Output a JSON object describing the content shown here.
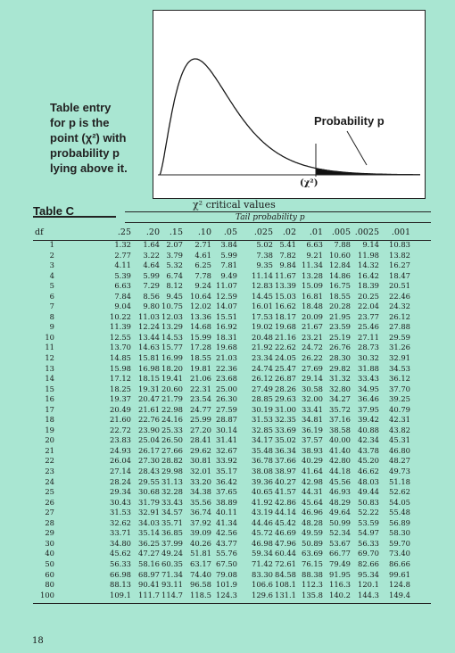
{
  "explanation": {
    "lines": [
      "Table entry",
      "for p is the",
      "point (χ²) with",
      "probability p",
      "lying above it."
    ]
  },
  "figure": {
    "probability_label": "Probability p",
    "x_label": "(χ²)",
    "colors": {
      "curve": "#1a1a1a",
      "shade": "#111111",
      "background": "#ffffff"
    }
  },
  "table": {
    "title": "Table C",
    "heading": "χ² critical values",
    "tail_label": "Tail probability p",
    "df_label": "df",
    "columns": [
      ".25",
      ".20",
      ".15",
      ".10",
      ".05",
      ".025",
      ".02",
      ".01",
      ".005",
      ".0025",
      ".001"
    ],
    "rows": [
      {
        "df": "1",
        "values": [
          "1.32",
          "1.64",
          "2.07",
          "2.71",
          "3.84",
          "5.02",
          "5.41",
          "6.63",
          "7.88",
          "9.14",
          "10.83"
        ]
      },
      {
        "df": "2",
        "values": [
          "2.77",
          "3.22",
          "3.79",
          "4.61",
          "5.99",
          "7.38",
          "7.82",
          "9.21",
          "10.60",
          "11.98",
          "13.82"
        ]
      },
      {
        "df": "3",
        "values": [
          "4.11",
          "4.64",
          "5.32",
          "6.25",
          "7.81",
          "9.35",
          "9.84",
          "11.34",
          "12.84",
          "14.32",
          "16.27"
        ]
      },
      {
        "df": "4",
        "values": [
          "5.39",
          "5.99",
          "6.74",
          "7.78",
          "9.49",
          "11.14",
          "11.67",
          "13.28",
          "14.86",
          "16.42",
          "18.47"
        ]
      },
      {
        "df": "5",
        "values": [
          "6.63",
          "7.29",
          "8.12",
          "9.24",
          "11.07",
          "12.83",
          "13.39",
          "15.09",
          "16.75",
          "18.39",
          "20.51"
        ]
      },
      {
        "df": "6",
        "values": [
          "7.84",
          "8.56",
          "9.45",
          "10.64",
          "12.59",
          "14.45",
          "15.03",
          "16.81",
          "18.55",
          "20.25",
          "22.46"
        ]
      },
      {
        "df": "7",
        "values": [
          "9.04",
          "9.80",
          "10.75",
          "12.02",
          "14.07",
          "16.01",
          "16.62",
          "18.48",
          "20.28",
          "22.04",
          "24.32"
        ]
      },
      {
        "df": "8",
        "values": [
          "10.22",
          "11.03",
          "12.03",
          "13.36",
          "15.51",
          "17.53",
          "18.17",
          "20.09",
          "21.95",
          "23.77",
          "26.12"
        ]
      },
      {
        "df": "9",
        "values": [
          "11.39",
          "12.24",
          "13.29",
          "14.68",
          "16.92",
          "19.02",
          "19.68",
          "21.67",
          "23.59",
          "25.46",
          "27.88"
        ]
      },
      {
        "df": "10",
        "values": [
          "12.55",
          "13.44",
          "14.53",
          "15.99",
          "18.31",
          "20.48",
          "21.16",
          "23.21",
          "25.19",
          "27.11",
          "29.59"
        ]
      },
      {
        "df": "11",
        "values": [
          "13.70",
          "14.63",
          "15.77",
          "17.28",
          "19.68",
          "21.92",
          "22.62",
          "24.72",
          "26.76",
          "28.73",
          "31.26"
        ]
      },
      {
        "df": "12",
        "values": [
          "14.85",
          "15.81",
          "16.99",
          "18.55",
          "21.03",
          "23.34",
          "24.05",
          "26.22",
          "28.30",
          "30.32",
          "32.91"
        ]
      },
      {
        "df": "13",
        "values": [
          "15.98",
          "16.98",
          "18.20",
          "19.81",
          "22.36",
          "24.74",
          "25.47",
          "27.69",
          "29.82",
          "31.88",
          "34.53"
        ]
      },
      {
        "df": "14",
        "values": [
          "17.12",
          "18.15",
          "19.41",
          "21.06",
          "23.68",
          "26.12",
          "26.87",
          "29.14",
          "31.32",
          "33.43",
          "36.12"
        ]
      },
      {
        "df": "15",
        "values": [
          "18.25",
          "19.31",
          "20.60",
          "22.31",
          "25.00",
          "27.49",
          "28.26",
          "30.58",
          "32.80",
          "34.95",
          "37.70"
        ]
      },
      {
        "df": "16",
        "values": [
          "19.37",
          "20.47",
          "21.79",
          "23.54",
          "26.30",
          "28.85",
          "29.63",
          "32.00",
          "34.27",
          "36.46",
          "39.25"
        ]
      },
      {
        "df": "17",
        "values": [
          "20.49",
          "21.61",
          "22.98",
          "24.77",
          "27.59",
          "30.19",
          "31.00",
          "33.41",
          "35.72",
          "37.95",
          "40.79"
        ]
      },
      {
        "df": "18",
        "values": [
          "21.60",
          "22.76",
          "24.16",
          "25.99",
          "28.87",
          "31.53",
          "32.35",
          "34.81",
          "37.16",
          "39.42",
          "42.31"
        ]
      },
      {
        "df": "19",
        "values": [
          "22.72",
          "23.90",
          "25.33",
          "27.20",
          "30.14",
          "32.85",
          "33.69",
          "36.19",
          "38.58",
          "40.88",
          "43.82"
        ]
      },
      {
        "df": "20",
        "values": [
          "23.83",
          "25.04",
          "26.50",
          "28.41",
          "31.41",
          "34.17",
          "35.02",
          "37.57",
          "40.00",
          "42.34",
          "45.31"
        ]
      },
      {
        "df": "21",
        "values": [
          "24.93",
          "26.17",
          "27.66",
          "29.62",
          "32.67",
          "35.48",
          "36.34",
          "38.93",
          "41.40",
          "43.78",
          "46.80"
        ]
      },
      {
        "df": "22",
        "values": [
          "26.04",
          "27.30",
          "28.82",
          "30.81",
          "33.92",
          "36.78",
          "37.66",
          "40.29",
          "42.80",
          "45.20",
          "48.27"
        ]
      },
      {
        "df": "23",
        "values": [
          "27.14",
          "28.43",
          "29.98",
          "32.01",
          "35.17",
          "38.08",
          "38.97",
          "41.64",
          "44.18",
          "46.62",
          "49.73"
        ]
      },
      {
        "df": "24",
        "values": [
          "28.24",
          "29.55",
          "31.13",
          "33.20",
          "36.42",
          "39.36",
          "40.27",
          "42.98",
          "45.56",
          "48.03",
          "51.18"
        ]
      },
      {
        "df": "25",
        "values": [
          "29.34",
          "30.68",
          "32.28",
          "34.38",
          "37.65",
          "40.65",
          "41.57",
          "44.31",
          "46.93",
          "49.44",
          "52.62"
        ]
      },
      {
        "df": "26",
        "values": [
          "30.43",
          "31.79",
          "33.43",
          "35.56",
          "38.89",
          "41.92",
          "42.86",
          "45.64",
          "48.29",
          "50.83",
          "54.05"
        ]
      },
      {
        "df": "27",
        "values": [
          "31.53",
          "32.91",
          "34.57",
          "36.74",
          "40.11",
          "43.19",
          "44.14",
          "46.96",
          "49.64",
          "52.22",
          "55.48"
        ]
      },
      {
        "df": "28",
        "values": [
          "32.62",
          "34.03",
          "35.71",
          "37.92",
          "41.34",
          "44.46",
          "45.42",
          "48.28",
          "50.99",
          "53.59",
          "56.89"
        ]
      },
      {
        "df": "29",
        "values": [
          "33.71",
          "35.14",
          "36.85",
          "39.09",
          "42.56",
          "45.72",
          "46.69",
          "49.59",
          "52.34",
          "54.97",
          "58.30"
        ]
      },
      {
        "df": "30",
        "values": [
          "34.80",
          "36.25",
          "37.99",
          "40.26",
          "43.77",
          "46.98",
          "47.96",
          "50.89",
          "53.67",
          "56.33",
          "59.70"
        ]
      },
      {
        "df": "40",
        "values": [
          "45.62",
          "47.27",
          "49.24",
          "51.81",
          "55.76",
          "59.34",
          "60.44",
          "63.69",
          "66.77",
          "69.70",
          "73.40"
        ]
      },
      {
        "df": "50",
        "values": [
          "56.33",
          "58.16",
          "60.35",
          "63.17",
          "67.50",
          "71.42",
          "72.61",
          "76.15",
          "79.49",
          "82.66",
          "86.66"
        ]
      },
      {
        "df": "60",
        "values": [
          "66.98",
          "68.97",
          "71.34",
          "74.40",
          "79.08",
          "83.30",
          "84.58",
          "88.38",
          "91.95",
          "95.34",
          "99.61"
        ]
      },
      {
        "df": "80",
        "values": [
          "88.13",
          "90.41",
          "93.11",
          "96.58",
          "101.9",
          "106.6",
          "108.1",
          "112.3",
          "116.3",
          "120.1",
          "124.8"
        ]
      },
      {
        "df": "100",
        "values": [
          "109.1",
          "111.7",
          "114.7",
          "118.5",
          "124.3",
          "129.6",
          "131.1",
          "135.8",
          "140.2",
          "144.3",
          "149.4"
        ]
      }
    ]
  },
  "page_number": "18"
}
